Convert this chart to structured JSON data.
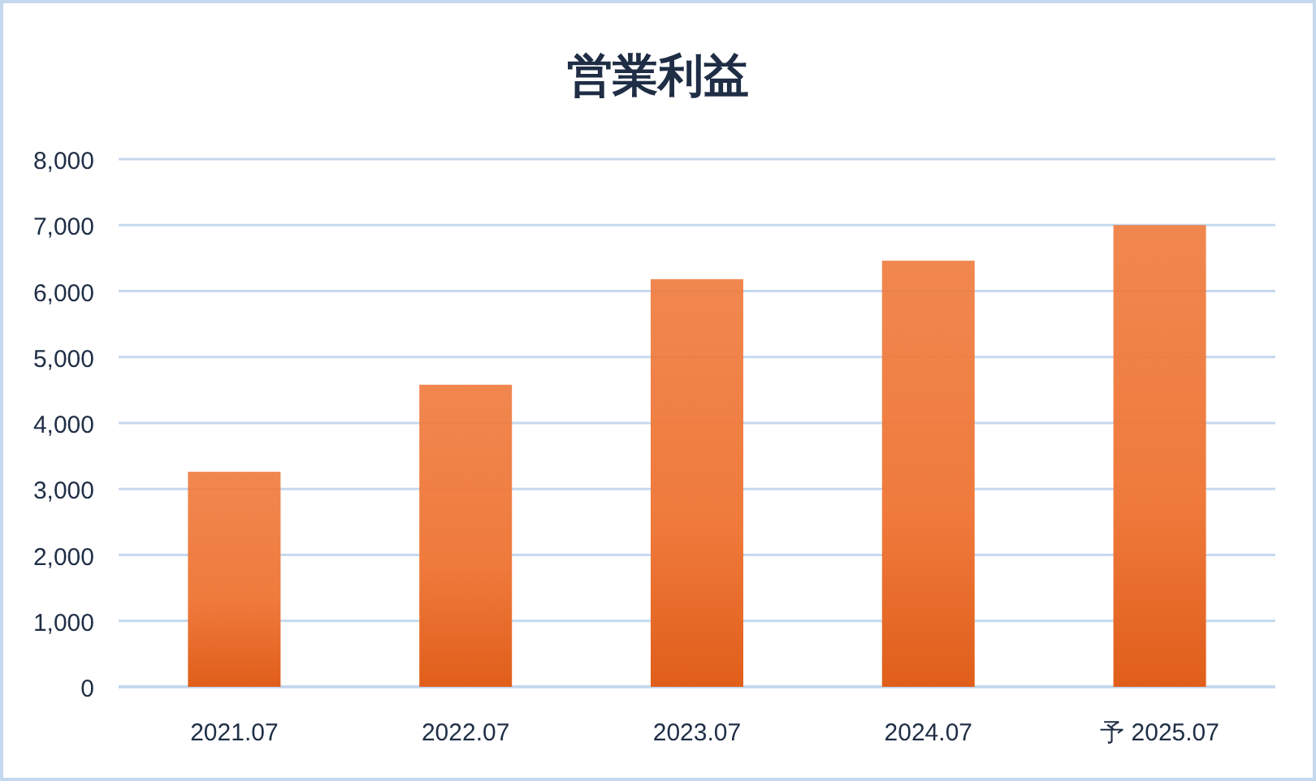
{
  "chart_data": {
    "type": "bar",
    "title": "営業利益",
    "categories": [
      "2021.07",
      "2022.07",
      "2023.07",
      "2024.07",
      "予 2025.07"
    ],
    "values": [
      3260,
      4580,
      6180,
      6460,
      7000
    ],
    "color": "#ef7a3c",
    "ylim": [
      0,
      8000
    ],
    "yticks": [
      {
        "value": 0,
        "label": "0"
      },
      {
        "value": 1000,
        "label": "1,000"
      },
      {
        "value": 2000,
        "label": "2,000"
      },
      {
        "value": 3000,
        "label": "3,000"
      },
      {
        "value": 4000,
        "label": "4,000"
      },
      {
        "value": 5000,
        "label": "5,000"
      },
      {
        "value": 6000,
        "label": "6,000"
      },
      {
        "value": 7000,
        "label": "7,000"
      },
      {
        "value": 8000,
        "label": "8,000"
      }
    ],
    "grid": "y"
  }
}
